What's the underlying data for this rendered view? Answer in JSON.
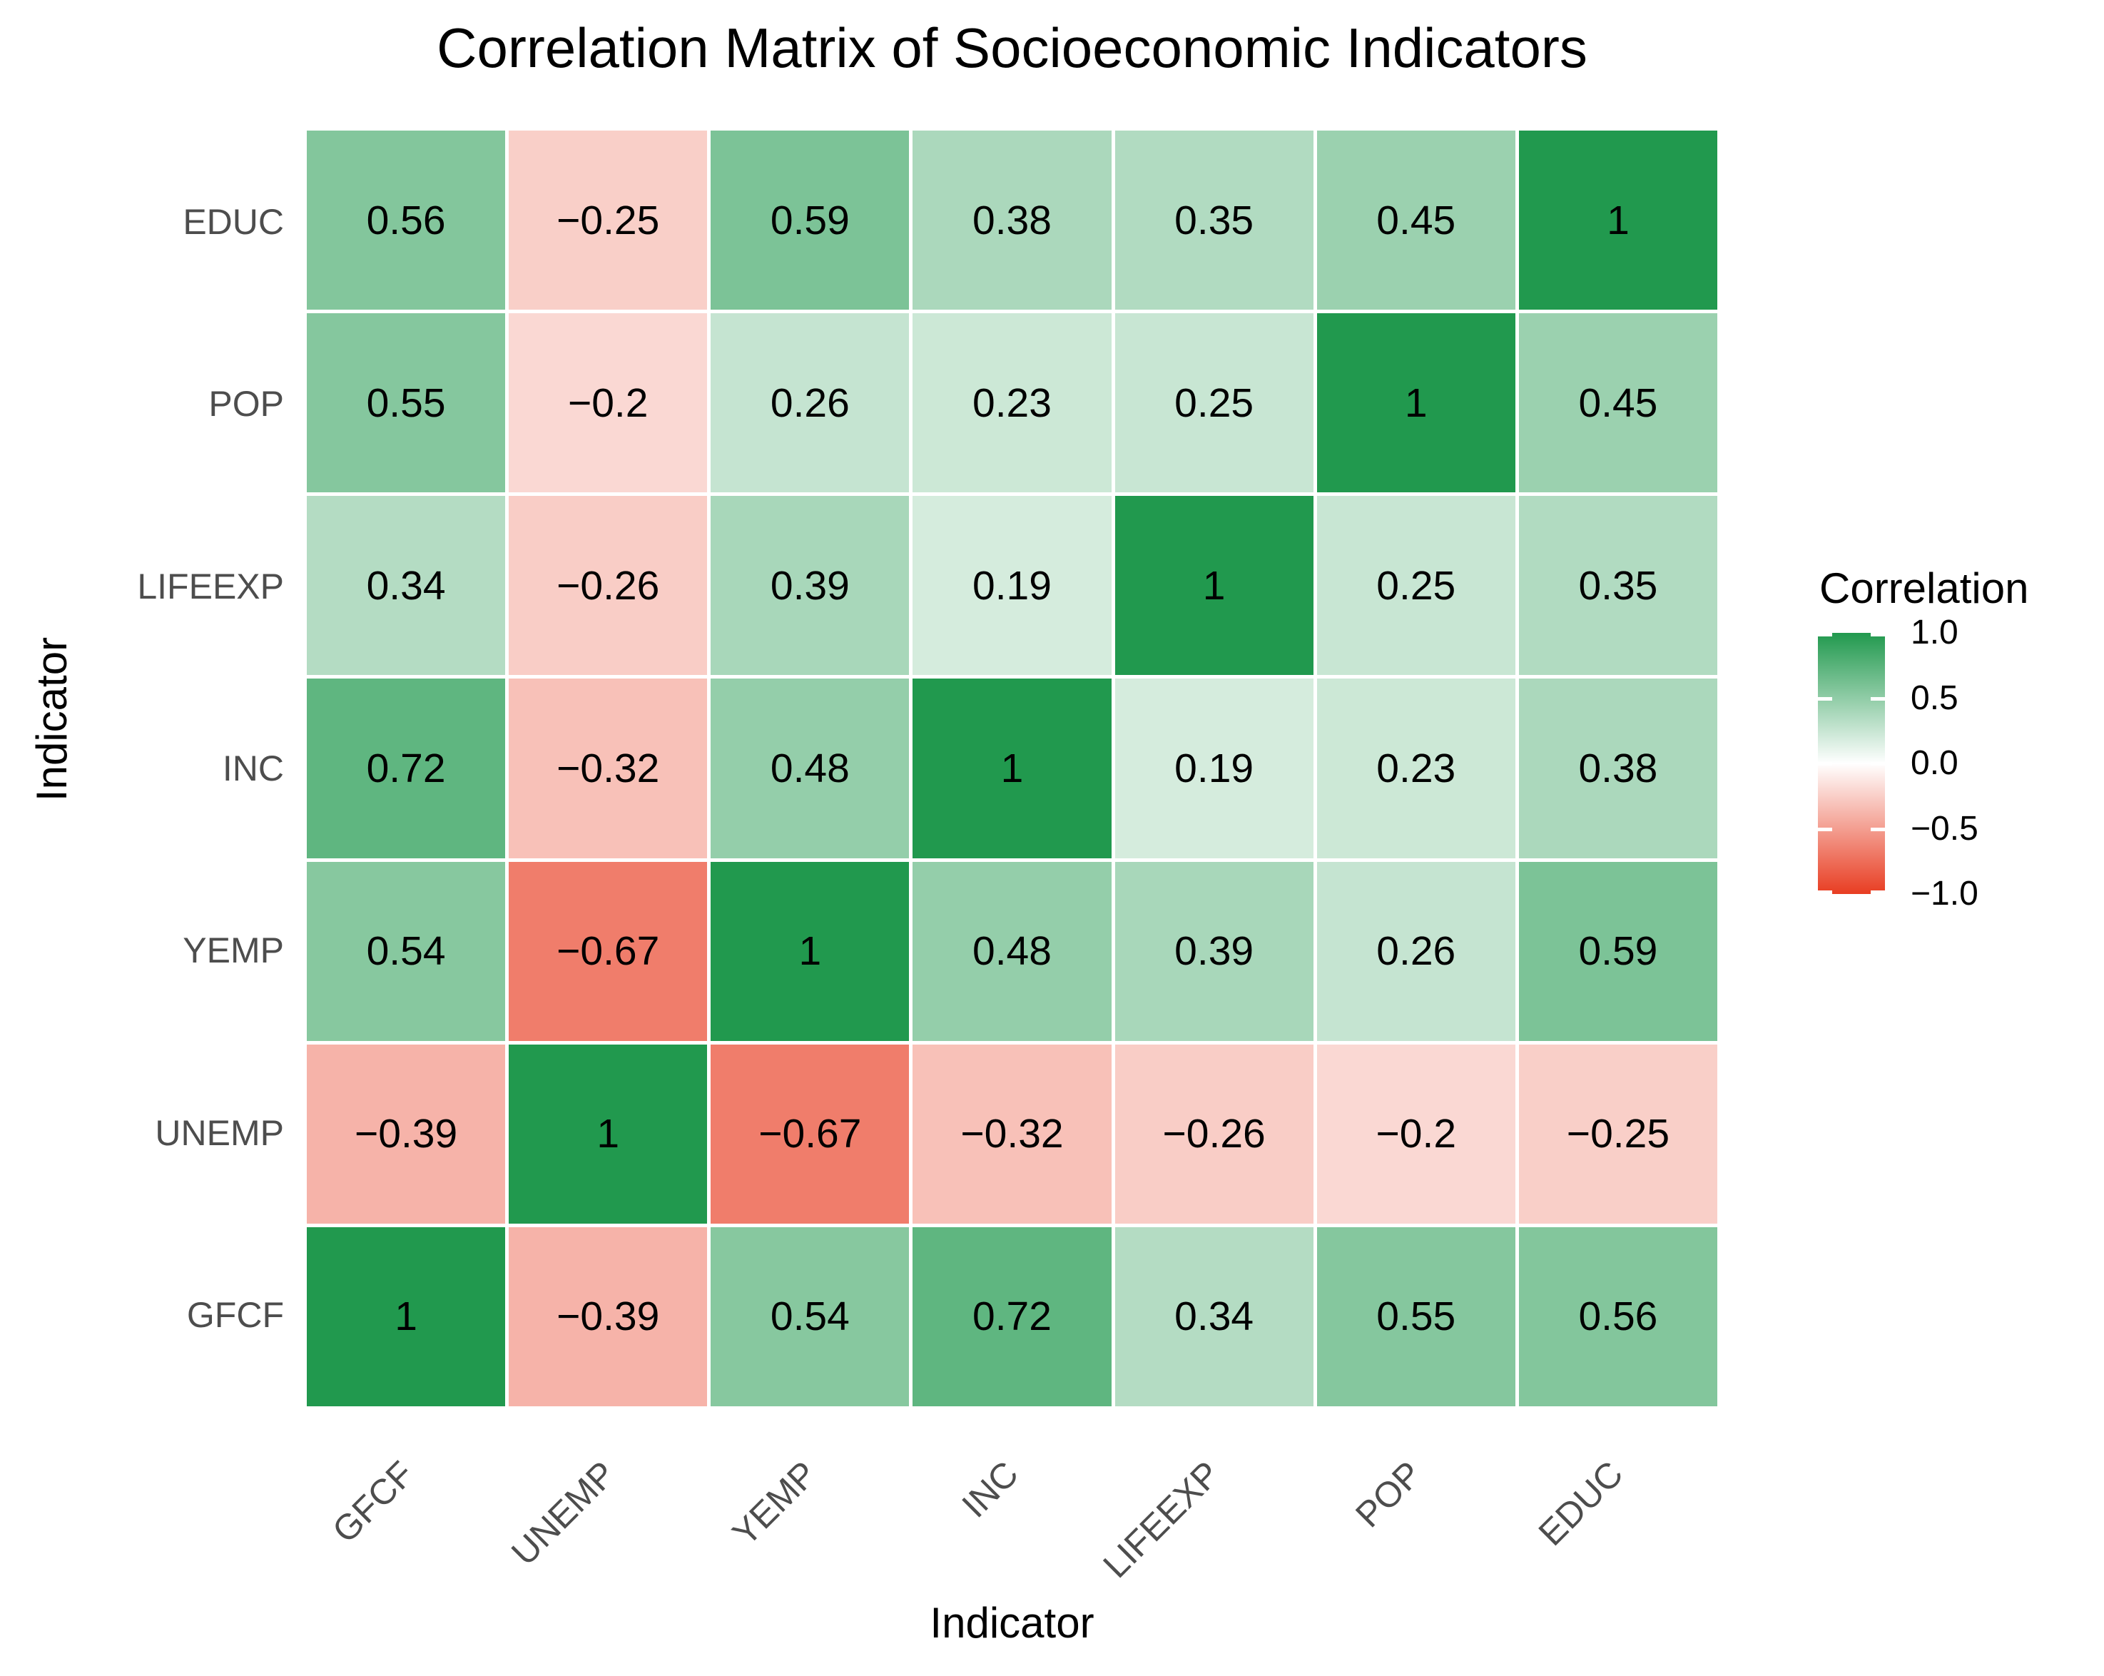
{
  "title": "Correlation Matrix of Socioeconomic Indicators",
  "x_axis_title": "Indicator",
  "y_axis_title": "Indicator",
  "legend": {
    "title": "Correlation",
    "ticks": [
      "1.0",
      "0.5",
      "0.0",
      "−0.5",
      "−1.0"
    ]
  },
  "colors": {
    "high": "#21994e",
    "mid": "#ffffff",
    "low": "#e83d22",
    "cell_text": "#000000",
    "axis_text": "#4d4d4d",
    "title_text": "#000000"
  },
  "chart_data": {
    "type": "heatmap",
    "title": "Correlation Matrix of Socioeconomic Indicators",
    "xlabel": "Indicator",
    "ylabel": "Indicator",
    "x_categories": [
      "GFCF",
      "UNEMP",
      "YEMP",
      "INC",
      "LIFEEXP",
      "POP",
      "EDUC"
    ],
    "y_categories_top_to_bottom": [
      "EDUC",
      "POP",
      "LIFEEXP",
      "INC",
      "YEMP",
      "UNEMP",
      "GFCF"
    ],
    "values": [
      [
        0.56,
        -0.25,
        0.59,
        0.38,
        0.35,
        0.45,
        1
      ],
      [
        0.55,
        -0.2,
        0.26,
        0.23,
        0.25,
        1,
        0.45
      ],
      [
        0.34,
        -0.26,
        0.39,
        0.19,
        1,
        0.25,
        0.35
      ],
      [
        0.72,
        -0.32,
        0.48,
        1,
        0.19,
        0.23,
        0.38
      ],
      [
        0.54,
        -0.67,
        1,
        0.48,
        0.39,
        0.26,
        0.59
      ],
      [
        -0.39,
        1,
        -0.67,
        -0.32,
        -0.26,
        -0.2,
        -0.25
      ],
      [
        1,
        -0.39,
        0.54,
        0.72,
        0.34,
        0.55,
        0.56
      ]
    ],
    "color_scale": {
      "domain": [
        -1,
        0,
        1
      ],
      "range": [
        "#e83d22",
        "#ffffff",
        "#21994e"
      ]
    },
    "legend_title": "Correlation",
    "legend_ticks": [
      1.0,
      0.5,
      0.0,
      -0.5,
      -1.0
    ],
    "legend_position": "right",
    "grid": false
  }
}
